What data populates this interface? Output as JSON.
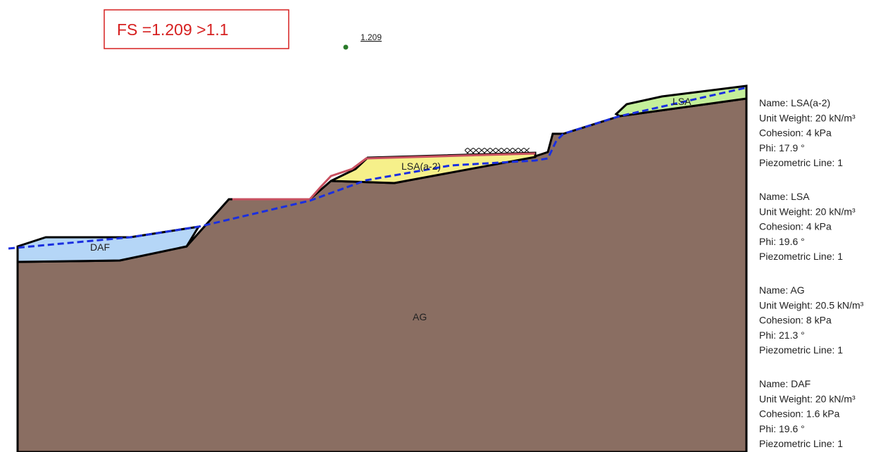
{
  "header": {
    "fs_note": "FS =1.209 >1.1"
  },
  "slip_surface": {
    "fs_label": "1.209"
  },
  "regions": [
    {
      "label": "LSA"
    },
    {
      "label": "LSA(a-2)"
    },
    {
      "label": "DAF"
    },
    {
      "label": "AG"
    }
  ],
  "materials": [
    {
      "name": "Name: LSA(a-2)",
      "unit_weight": "Unit Weight: 20 kN/m³",
      "cohesion": "Cohesion: 4 kPa",
      "phi": "Phi: 17.9 °",
      "piezometric": "Piezometric Line: 1"
    },
    {
      "name": "Name: LSA",
      "unit_weight": "Unit Weight: 20 kN/m³",
      "cohesion": "Cohesion: 4 kPa",
      "phi": "Phi: 19.6 °",
      "piezometric": "Piezometric Line: 1"
    },
    {
      "name": "Name: AG",
      "unit_weight": "Unit Weight: 20.5 kN/m³",
      "cohesion": "Cohesion: 8 kPa",
      "phi": "Phi: 21.3 °",
      "piezometric": "Piezometric Line: 1"
    },
    {
      "name": "Name: DAF",
      "unit_weight": "Unit Weight: 20 kN/m³",
      "cohesion": "Cohesion: 1.6 kPa",
      "phi": "Phi: 19.6 °",
      "piezometric": "Piezometric Line: 1"
    }
  ]
}
